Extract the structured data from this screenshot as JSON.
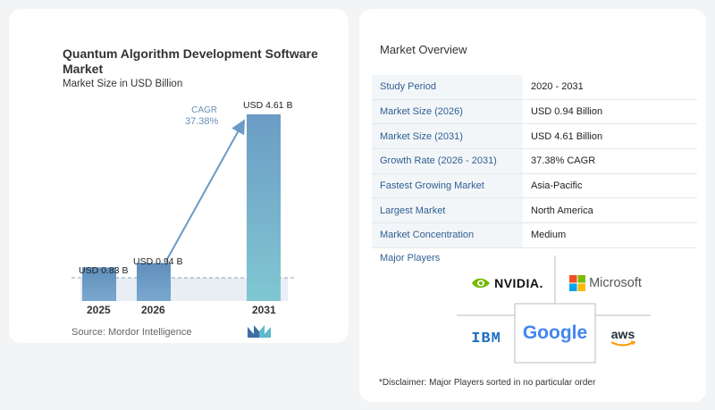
{
  "chart": {
    "title": "Quantum Algorithm Development Software Market",
    "subtitle": "Market Size in USD Billion",
    "cagr_label": "CAGR",
    "cagr_value": "37.38%",
    "source": "Source:  Mordor Intelligence"
  },
  "chart_data": {
    "type": "bar",
    "title": "Quantum Algorithm Development Software Market",
    "ylabel": "Market Size in USD Billion",
    "categories": [
      "2025",
      "2026",
      "2031"
    ],
    "values": [
      0.83,
      0.94,
      4.61
    ],
    "data_labels": [
      "USD 0.83 B",
      "USD 0.94 B",
      "USD 4.61 B"
    ],
    "colors": [
      "#6b9ac4",
      "#6b9ac4",
      "#7fc0cf"
    ]
  },
  "overview": {
    "title": "Market Overview",
    "rows": [
      {
        "key": "Study Period",
        "value": "2020 - 2031"
      },
      {
        "key": "Market Size (2026)",
        "value": "USD 0.94 Billion"
      },
      {
        "key": "Market Size (2031)",
        "value": "USD 4.61 Billion"
      },
      {
        "key": "Growth Rate (2026 - 2031)",
        "value": "37.38% CAGR"
      },
      {
        "key": "Fastest Growing Market",
        "value": "Asia-Pacific"
      },
      {
        "key": "Largest Market",
        "value": "North America"
      },
      {
        "key": "Market Concentration",
        "value": "Medium"
      }
    ]
  },
  "players": {
    "title": "Major Players",
    "nvidia": "NVIDIA.",
    "microsoft": "Microsoft",
    "ibm": "IBM",
    "google": "Google",
    "aws": "aws"
  },
  "disclaimer": "*Disclaimer: Major Players sorted in no particular order"
}
